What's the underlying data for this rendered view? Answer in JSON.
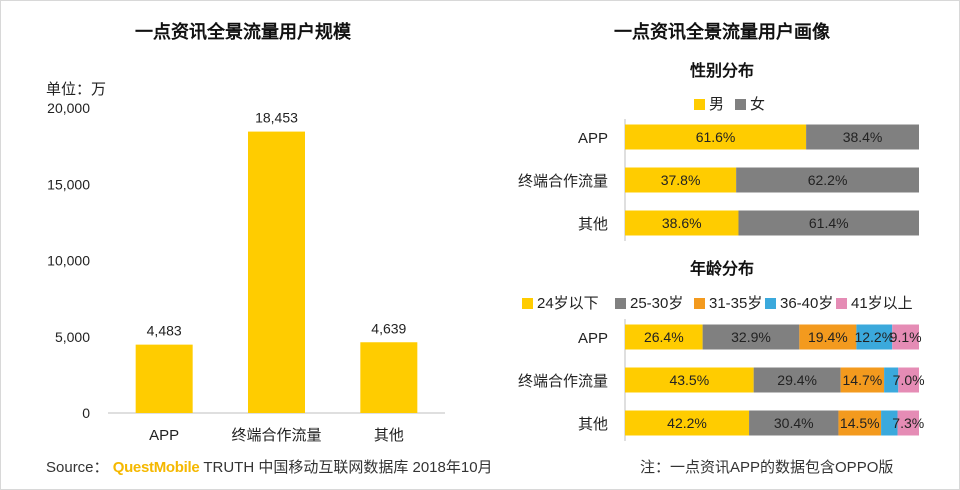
{
  "chart_data": [
    {
      "type": "bar",
      "title": "一点资讯全景流量用户规模",
      "unit_label": "单位：万",
      "categories": [
        "APP",
        "终端合作流量",
        "其他"
      ],
      "values": [
        4483,
        18453,
        4639
      ],
      "value_labels": [
        "4,483",
        "18,453",
        "4,639"
      ],
      "yticks": [
        0,
        5000,
        10000,
        15000,
        20000
      ],
      "ytick_labels": [
        "0",
        "5,000",
        "10,000",
        "15,000",
        "20,000"
      ],
      "ylim": [
        0,
        20000
      ],
      "color": "#FFCC00"
    },
    {
      "type": "bar",
      "orientation": "horizontal",
      "stacked": true,
      "title": "一点资讯全景流量用户画像",
      "subtitle": "性别分布",
      "categories": [
        "APP",
        "终端合作流量",
        "其他"
      ],
      "series": [
        {
          "name": "男",
          "color": "#FFCC00",
          "values": [
            61.6,
            37.8,
            38.6
          ],
          "labels": [
            "61.6%",
            "37.8%",
            "38.6%"
          ]
        },
        {
          "name": "女",
          "color": "#808080",
          "values": [
            38.4,
            62.2,
            61.4
          ],
          "labels": [
            "38.4%",
            "62.2%",
            "61.4%"
          ]
        }
      ],
      "xlim": [
        0,
        100
      ]
    },
    {
      "type": "bar",
      "orientation": "horizontal",
      "stacked": true,
      "subtitle": "年龄分布",
      "categories": [
        "APP",
        "终端合作流量",
        "其他"
      ],
      "series": [
        {
          "name": "24岁以下",
          "color": "#FFCC00",
          "values": [
            26.4,
            43.5,
            42.2
          ],
          "labels": [
            "26.4%",
            "43.5%",
            "42.2%"
          ]
        },
        {
          "name": "25-30岁",
          "color": "#808080",
          "values": [
            32.9,
            29.4,
            30.4
          ],
          "labels": [
            "32.9%",
            "29.4%",
            "30.4%"
          ]
        },
        {
          "name": "31-35岁",
          "color": "#F39A1E",
          "values": [
            19.4,
            14.7,
            14.5
          ],
          "labels": [
            "19.4%",
            "14.7%",
            "14.5%"
          ]
        },
        {
          "name": "36-40岁",
          "color": "#3BA9DC",
          "values": [
            12.2,
            4.8,
            5.6
          ],
          "labels": [
            "12.2%",
            "",
            ""
          ]
        },
        {
          "name": "41岁以上",
          "color": "#E58CB5",
          "values": [
            9.1,
            7.0,
            7.3
          ],
          "labels": [
            "9.1%",
            "7.0%",
            "7.3%"
          ]
        }
      ],
      "xlim": [
        0,
        100
      ]
    }
  ],
  "footer": {
    "source_prefix": "Source：",
    "source_brand": "QuestMobile",
    "source_rest": "TRUTH 中国移动互联网数据库 2018年10月",
    "note": "注：一点资讯APP的数据包含OPPO版"
  }
}
